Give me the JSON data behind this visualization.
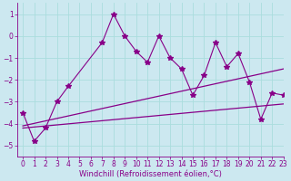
{
  "xlabel": "Windchill (Refroidissement éolien,°C)",
  "line1_x": [
    0,
    1,
    2,
    3,
    4,
    7,
    8,
    9,
    10,
    11,
    12,
    13,
    14,
    15,
    16,
    17,
    18,
    19,
    20,
    21,
    22,
    23
  ],
  "line1_y": [
    -3.5,
    -4.8,
    -4.2,
    -3.0,
    -2.3,
    -0.3,
    1.0,
    0.0,
    -0.7,
    -1.2,
    0.0,
    -1.0,
    -1.5,
    -2.7,
    -1.8,
    -0.3,
    -1.4,
    -0.8,
    -2.1,
    -3.8,
    -2.6,
    -2.7
  ],
  "line2_x": [
    0,
    23
  ],
  "line2_y": [
    -4.1,
    -1.5
  ],
  "line3_x": [
    0,
    23
  ],
  "line3_y": [
    -4.2,
    -3.1
  ],
  "color": "#880088",
  "bg_color": "#cce8f0",
  "grid_color": "#aadddd",
  "xlim": [
    -0.5,
    23
  ],
  "ylim": [
    -5.5,
    1.5
  ],
  "yticks": [
    -5,
    -4,
    -3,
    -2,
    -1,
    0,
    1
  ],
  "xticks": [
    0,
    1,
    2,
    3,
    4,
    5,
    6,
    7,
    8,
    9,
    10,
    11,
    12,
    13,
    14,
    15,
    16,
    17,
    18,
    19,
    20,
    21,
    22,
    23
  ],
  "tick_fontsize": 5.5,
  "xlabel_fontsize": 6.0
}
